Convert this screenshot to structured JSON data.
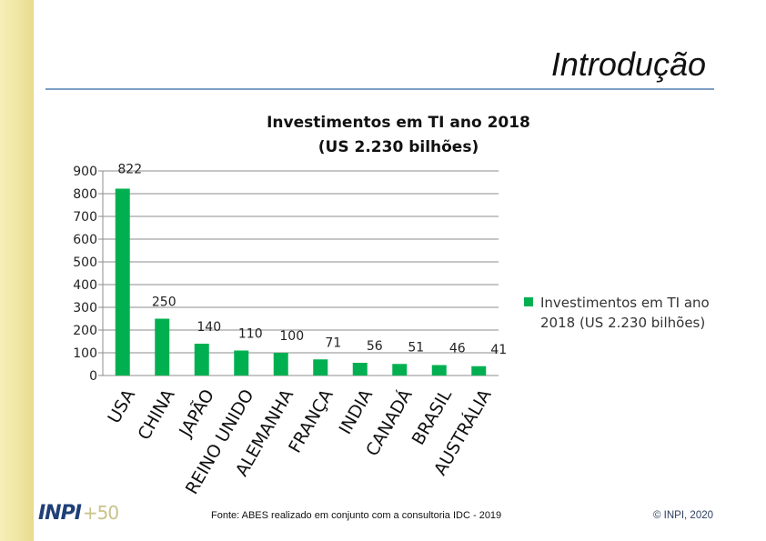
{
  "slide": {
    "title": "Introdução",
    "source": "Fonte: ABES realizado em conjunto com a consultoria IDC - 2019",
    "copyright": "© INPI, 2020",
    "logo_text": "INPI",
    "logo_suffix": "+50"
  },
  "colors": {
    "bar": "#00b050",
    "stripe": "#f3eaaa",
    "rule": "#7f9fc4"
  },
  "chart_data": {
    "type": "bar",
    "title_lines": [
      "Investimentos em TI ano 2018",
      "(US 2.230 bilhões)"
    ],
    "categories": [
      "USA",
      "CHINA",
      "JAPÃO",
      "REINO UNIDO",
      "ALEMANHA",
      "FRANÇA",
      "INDIA",
      "CANADÁ",
      "BRASIL",
      "AUSTRÁLIA"
    ],
    "series": [
      {
        "name": "Investimentos em TI ano 2018 (US 2.230 bilhões)",
        "values": [
          822,
          250,
          140,
          110,
          100,
          71,
          56,
          51,
          46,
          41
        ]
      }
    ],
    "ylim": [
      0,
      900
    ],
    "yticks": [
      0,
      100,
      200,
      300,
      400,
      500,
      600,
      700,
      800,
      900
    ],
    "grid": true,
    "legend_position": "right",
    "legend_lines": [
      "Investimentos em TI ano",
      "2018 (US 2.230 bilhões)"
    ]
  }
}
